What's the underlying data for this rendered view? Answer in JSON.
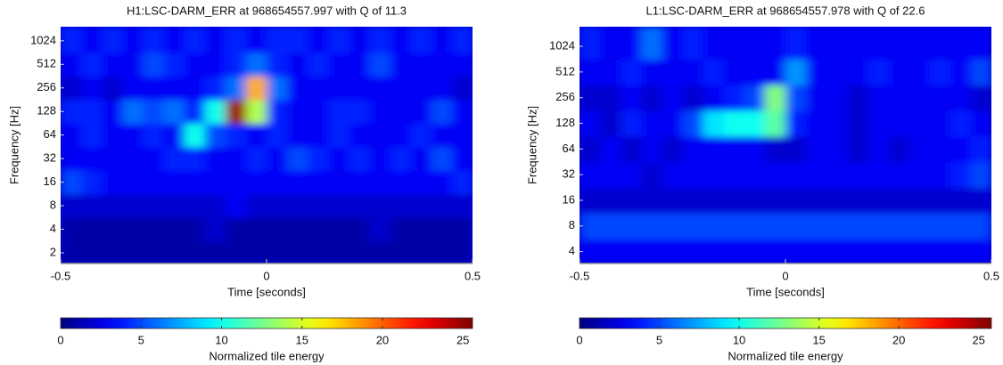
{
  "chart_data": [
    {
      "type": "heatmap",
      "title": "H1:LSC-DARM_ERR at 968654557.997 with Q of 11.3",
      "xlabel": "Time [seconds]",
      "ylabel": "Frequency [Hz]",
      "colorbar_label": "Normalized tile energy",
      "colormap": "jet",
      "log_y": true,
      "xlim": [
        -0.5,
        0.5
      ],
      "xticks": [
        -0.5,
        0,
        0.5
      ],
      "ylim": [
        1.46,
        1550
      ],
      "yticks": [
        2,
        4,
        8,
        16,
        32,
        64,
        128,
        256,
        512,
        1024
      ],
      "clim": [
        0,
        25.6
      ],
      "cticks": [
        0,
        5,
        10,
        15,
        20,
        25
      ],
      "x_bins": [
        -0.5,
        -0.45,
        -0.4,
        -0.35,
        -0.3,
        -0.25,
        -0.2,
        -0.15,
        -0.1,
        -0.05,
        0,
        0.05,
        0.1,
        0.15,
        0.2,
        0.25,
        0.3,
        0.35,
        0.4,
        0.45,
        0.5
      ],
      "y_bins": [
        1.46,
        2.83,
        5.66,
        11.3,
        22.6,
        45.3,
        90.5,
        181,
        362,
        724,
        1550
      ],
      "z": [
        [
          1,
          1,
          1,
          1,
          1,
          1,
          1,
          1,
          1,
          1,
          1,
          1,
          1,
          1,
          1,
          1,
          1,
          1,
          1,
          1
        ],
        [
          1,
          1,
          1,
          1,
          1,
          1,
          1,
          2,
          1,
          1,
          1,
          1,
          1,
          1,
          1,
          2,
          1,
          1,
          1,
          1
        ],
        [
          2,
          2,
          2,
          2,
          2,
          2,
          2,
          2,
          3,
          2,
          2,
          2,
          2,
          2,
          2,
          2,
          2,
          2,
          2,
          2
        ],
        [
          5,
          4,
          3,
          3,
          3,
          3,
          3,
          3,
          3,
          3,
          3,
          3,
          3,
          3,
          3,
          3,
          3,
          3,
          3,
          4
        ],
        [
          3,
          3,
          3,
          3,
          3,
          4,
          4,
          3,
          3,
          4,
          3,
          5,
          4,
          3,
          4,
          3,
          4,
          3,
          5,
          3
        ],
        [
          3,
          4,
          3,
          3,
          4,
          3,
          10,
          5,
          4,
          3,
          4,
          3,
          3,
          4,
          3,
          3,
          3,
          4,
          3,
          3
        ],
        [
          4,
          4,
          3,
          6,
          5,
          6,
          4,
          10,
          25,
          14,
          4,
          3,
          3,
          4,
          4,
          3,
          3,
          3,
          5,
          3
        ],
        [
          2,
          3,
          2,
          3,
          3,
          3,
          3,
          4,
          6,
          18,
          6,
          3,
          3,
          3,
          3,
          3,
          3,
          3,
          3,
          2
        ],
        [
          3,
          4,
          3,
          3,
          5,
          4,
          3,
          3,
          4,
          6,
          4,
          3,
          4,
          3,
          3,
          5,
          3,
          3,
          3,
          3
        ],
        [
          4,
          3,
          4,
          3,
          4,
          3,
          4,
          3,
          4,
          3,
          4,
          4,
          3,
          4,
          3,
          4,
          3,
          4,
          3,
          4
        ]
      ]
    },
    {
      "type": "heatmap",
      "title": "L1:LSC-DARM_ERR at 968654557.978 with Q of 22.6",
      "xlabel": "Time [seconds]",
      "ylabel": "Frequency [Hz]",
      "colorbar_label": "Normalized tile energy",
      "colormap": "jet",
      "log_y": true,
      "xlim": [
        -0.5,
        0.5
      ],
      "xticks": [
        -0.5,
        0,
        0.5
      ],
      "ylim": [
        2.9,
        1740
      ],
      "yticks": [
        4,
        8,
        16,
        32,
        64,
        128,
        256,
        512,
        1024
      ],
      "clim": [
        0,
        25.8
      ],
      "cticks": [
        0,
        5,
        10,
        15,
        20,
        25
      ],
      "x_bins": [
        -0.5,
        -0.45,
        -0.4,
        -0.35,
        -0.3,
        -0.25,
        -0.2,
        -0.15,
        -0.1,
        -0.05,
        0,
        0.05,
        0.1,
        0.15,
        0.2,
        0.25,
        0.3,
        0.35,
        0.4,
        0.45,
        0.5
      ],
      "y_bins": [
        2.9,
        5.66,
        11.3,
        22.6,
        45.3,
        90.5,
        181,
        362,
        724,
        1740
      ],
      "z": [
        [
          3,
          3,
          3,
          3,
          3,
          3,
          3,
          3,
          3,
          3,
          3,
          3,
          3,
          3,
          3,
          3,
          3,
          3,
          3,
          3
        ],
        [
          5,
          5,
          5,
          5,
          5,
          5,
          5,
          5,
          5,
          5,
          5,
          5,
          5,
          5,
          5,
          5,
          5,
          5,
          5,
          5
        ],
        [
          2,
          2,
          2,
          2,
          2,
          2,
          2,
          2,
          2,
          2,
          2,
          2,
          2,
          2,
          2,
          2,
          2,
          2,
          2,
          2
        ],
        [
          3,
          3,
          3,
          2,
          3,
          3,
          3,
          3,
          3,
          3,
          3,
          3,
          3,
          3,
          3,
          3,
          3,
          3,
          4,
          5
        ],
        [
          2,
          3,
          2,
          3,
          2,
          3,
          3,
          3,
          3,
          2,
          2,
          3,
          3,
          2,
          3,
          2,
          3,
          3,
          3,
          4
        ],
        [
          3,
          2,
          4,
          3,
          3,
          5,
          9,
          10,
          10,
          12,
          4,
          3,
          3,
          2,
          3,
          3,
          3,
          3,
          4,
          3
        ],
        [
          2,
          2,
          3,
          2,
          3,
          2,
          3,
          4,
          5,
          13,
          5,
          3,
          3,
          2,
          3,
          3,
          3,
          3,
          3,
          2
        ],
        [
          3,
          3,
          4,
          3,
          3,
          3,
          4,
          3,
          3,
          3,
          7,
          3,
          3,
          3,
          4,
          3,
          3,
          4,
          3,
          5
        ],
        [
          4,
          3,
          3,
          6,
          3,
          4,
          3,
          3,
          3,
          3,
          4,
          3,
          3,
          3,
          3,
          3,
          3,
          3,
          3,
          3
        ]
      ]
    }
  ]
}
